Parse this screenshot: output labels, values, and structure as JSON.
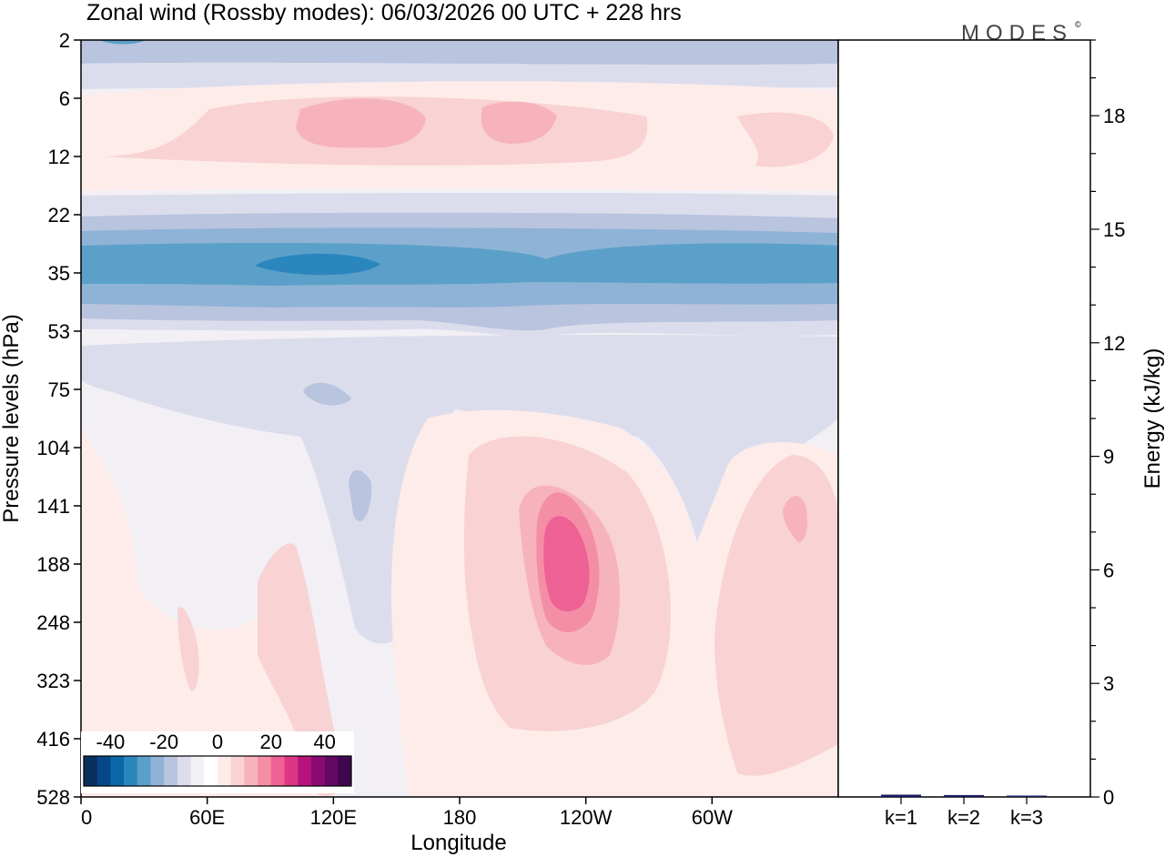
{
  "chart_data": [
    {
      "type": "heatmap",
      "title": "Zonal wind (Rossby modes):  06/03/2026  00 UTC  + 228 hrs",
      "logo": "MODES",
      "xlabel": "Longitude",
      "ylabel": "Pressure levels (hPa)",
      "x_ticks": [
        "0",
        "60E",
        "120E",
        "180",
        "120W",
        "60W"
      ],
      "x_tick_values": [
        0,
        60,
        120,
        180,
        240,
        300
      ],
      "xlim": [
        0,
        360
      ],
      "y_ticks": [
        "2",
        "6",
        "12",
        "22",
        "35",
        "53",
        "75",
        "104",
        "141",
        "188",
        "248",
        "323",
        "416",
        "528"
      ],
      "colorbar": {
        "tick_labels": [
          "-40",
          "-20",
          "0",
          "20",
          "40"
        ],
        "tick_values": [
          -40,
          -20,
          0,
          20,
          40
        ],
        "range": [
          -50,
          50
        ],
        "step": 5,
        "colors": [
          "#08305c",
          "#08468a",
          "#0b67a8",
          "#2b86bd",
          "#5ba0c9",
          "#8fb3d6",
          "#b9c4df",
          "#dcddec",
          "#f2eff5",
          "#ffffff",
          "#fdecea",
          "#f9d2d3",
          "#f7b3bc",
          "#f48ea6",
          "#ee6194",
          "#dd3684",
          "#b5157a",
          "#8a0a72",
          "#640862",
          "#400751"
        ]
      },
      "contour_fields": [
        {
          "label": "-10 to -5",
          "color": "#dcddec"
        },
        {
          "label": "-15 to -10",
          "color": "#b9c4df"
        },
        {
          "label": "-20 to -15",
          "color": "#8fb3d6"
        },
        {
          "label": "-25 to -20",
          "color": "#5ba0c9"
        },
        {
          "label": "-30 to -25",
          "color": "#2b86bd"
        },
        {
          "label": "0 to 5",
          "color": "#fdecea"
        },
        {
          "label": "5 to 10",
          "color": "#f9d2d3"
        },
        {
          "label": "10 to 15",
          "color": "#f7b3bc"
        },
        {
          "label": "15 to 20",
          "color": "#f48ea6"
        },
        {
          "label": "20 to 25",
          "color": "#ee6194"
        }
      ]
    },
    {
      "type": "bar",
      "ylabel": "Energy (kJ/kg)",
      "categories": [
        "k=1",
        "k=2",
        "k=3"
      ],
      "values": [
        0.06,
        0.05,
        0.02
      ],
      "ylim": [
        0,
        20
      ],
      "y_ticks": [
        0,
        3,
        6,
        9,
        12,
        15,
        18
      ],
      "bar_color": "#1a1a66"
    }
  ]
}
